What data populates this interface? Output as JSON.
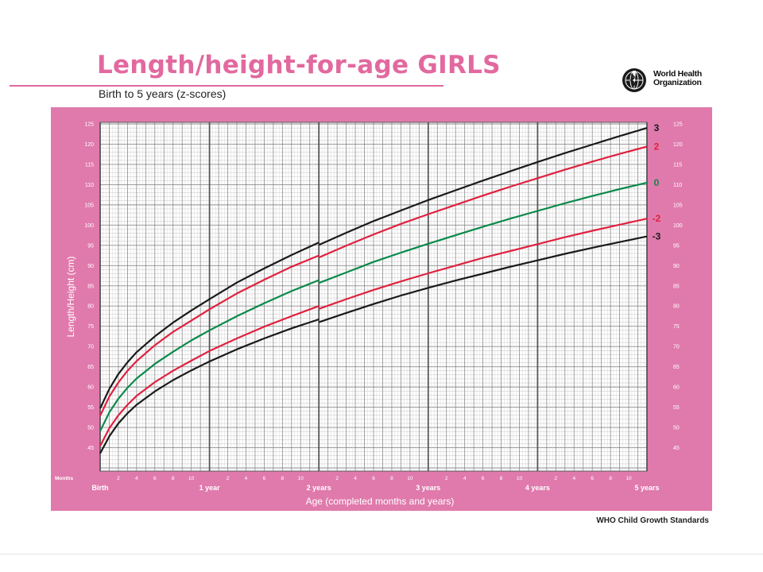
{
  "header": {
    "title": "Length/height-for-age GIRLS",
    "subtitle": "Birth to 5 years (z-scores)",
    "org_name": "World Health Organization",
    "emblem_icon": "who-emblem-icon"
  },
  "footer": {
    "text": "WHO Child Growth Standards"
  },
  "colors": {
    "frame": "#e07aac",
    "title": "#e2699f",
    "black_curve": "#1a1a1a",
    "red_curve": "#e0213f",
    "green_curve": "#0a8a4a"
  },
  "chart_data": {
    "type": "line",
    "title": "Length/height-for-age GIRLS",
    "subtitle": "Birth to 5 years (z-scores)",
    "xlabel": "Age (completed months and years)",
    "ylabel": "Length/Height (cm)",
    "x_unit_label": "Months",
    "xlim": [
      0,
      60
    ],
    "ylim": [
      40,
      125
    ],
    "yticks": [
      45,
      50,
      55,
      60,
      65,
      70,
      75,
      80,
      85,
      90,
      95,
      100,
      105,
      110,
      115,
      120,
      125
    ],
    "x_major_ticks": [
      {
        "month": 0,
        "label": "Birth"
      },
      {
        "month": 12,
        "label": "1 year"
      },
      {
        "month": 24,
        "label": "2 years"
      },
      {
        "month": 36,
        "label": "3 years"
      },
      {
        "month": 48,
        "label": "4 years"
      },
      {
        "month": 60,
        "label": "5 years"
      }
    ],
    "x_minor_tick_labels": [
      "2",
      "4",
      "6",
      "8",
      "10"
    ],
    "grid": true,
    "legend": "curve labels at right end",
    "x": [
      0,
      1,
      2,
      3,
      4,
      6,
      8,
      10,
      12,
      15,
      18,
      21,
      24,
      27,
      30,
      33,
      36,
      39,
      42,
      45,
      48,
      51,
      54,
      57,
      60
    ],
    "series": [
      {
        "name": "3",
        "color": "#1a1a1a",
        "break_at": 24,
        "values_before": [
          54.7,
          59.5,
          63.2,
          66.1,
          68.6,
          72.5,
          75.9,
          78.9,
          81.7,
          85.8,
          89.3,
          92.6,
          95.7
        ],
        "values_after": [
          95.1,
          98.1,
          101.0,
          103.6,
          106.2,
          108.6,
          111.0,
          113.3,
          115.6,
          117.8,
          119.9,
          122.0,
          124.0
        ]
      },
      {
        "name": "2",
        "color": "#e0213f",
        "break_at": 24,
        "values_before": [
          52.9,
          57.6,
          61.1,
          64.0,
          66.4,
          70.3,
          73.6,
          76.4,
          79.2,
          83.1,
          86.5,
          89.7,
          92.5
        ],
        "values_after": [
          92.0,
          94.9,
          97.7,
          100.3,
          102.7,
          105.0,
          107.3,
          109.5,
          111.6,
          113.7,
          115.7,
          117.6,
          119.4
        ]
      },
      {
        "name": "0",
        "color": "#0a8a4a",
        "break_at": 24,
        "values_before": [
          49.1,
          53.7,
          57.1,
          59.8,
          62.1,
          65.7,
          68.7,
          71.5,
          74.0,
          77.5,
          80.7,
          83.7,
          86.4
        ],
        "values_after": [
          85.7,
          88.3,
          90.9,
          93.2,
          95.4,
          97.5,
          99.6,
          101.6,
          103.5,
          105.4,
          107.2,
          108.9,
          110.5
        ]
      },
      {
        "name": "-2",
        "color": "#e0213f",
        "break_at": 24,
        "values_before": [
          45.4,
          49.8,
          53.0,
          55.6,
          57.8,
          61.2,
          64.0,
          66.5,
          68.9,
          72.0,
          74.9,
          77.5,
          80.0
        ],
        "values_after": [
          79.3,
          81.7,
          84.0,
          86.1,
          88.1,
          90.0,
          91.9,
          93.6,
          95.3,
          97.0,
          98.6,
          100.1,
          101.6
        ]
      },
      {
        "name": "-3",
        "color": "#1a1a1a",
        "break_at": 24,
        "values_before": [
          43.6,
          47.8,
          51.0,
          53.5,
          55.6,
          58.9,
          61.7,
          64.1,
          66.3,
          69.3,
          72.0,
          74.5,
          76.7
        ],
        "values_after": [
          76.0,
          78.3,
          80.5,
          82.6,
          84.5,
          86.3,
          88.0,
          89.7,
          91.3,
          92.9,
          94.4,
          95.8,
          97.2
        ]
      }
    ]
  }
}
